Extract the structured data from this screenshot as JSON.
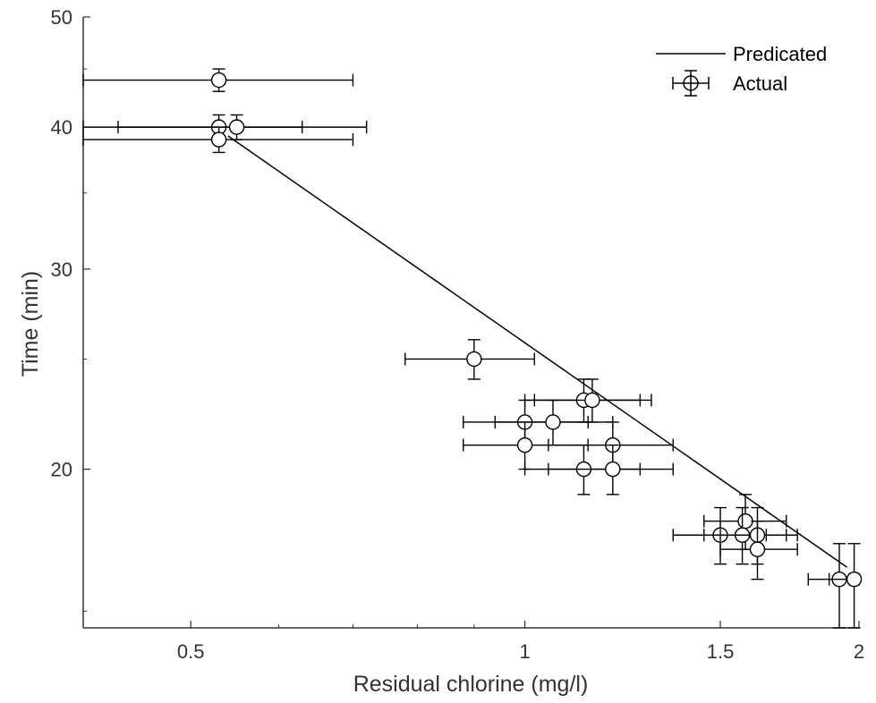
{
  "chart_data": {
    "type": "scatter",
    "xlabel": "Residual chlorine (mg/l)",
    "ylabel": "Time (min)",
    "x_scale": "log",
    "y_scale": "log",
    "xlim": [
      0.4,
      2.0
    ],
    "ylim": [
      14.5,
      50
    ],
    "x_ticks": [
      {
        "value": 0.5,
        "label": "0.5"
      },
      {
        "value": 1,
        "label": "1"
      },
      {
        "value": 1.5,
        "label": "1.5"
      },
      {
        "value": 2,
        "label": "2"
      }
    ],
    "y_ticks": [
      {
        "value": 20,
        "label": "20"
      },
      {
        "value": 30,
        "label": "30"
      },
      {
        "value": 40,
        "label": "40"
      },
      {
        "value": 50,
        "label": "50"
      }
    ],
    "grid": false,
    "legend_position": "top-right",
    "series": [
      {
        "name": "Predicated",
        "kind": "line",
        "color": "#000000",
        "points": [
          [
            0.54,
            39.3
          ],
          [
            1.95,
            16.4
          ]
        ]
      },
      {
        "name": "Actual",
        "kind": "errorbar",
        "marker": "circle",
        "color": "#000000",
        "points": [
          {
            "x": 0.53,
            "y": 44,
            "x_err_low": 0.4,
            "x_err_high": 0.7,
            "y_err_low": 43,
            "y_err_high": 45
          },
          {
            "x": 0.53,
            "y": 40,
            "x_err_low": 0.4,
            "x_err_high": 0.63,
            "y_err_low": 39,
            "y_err_high": 41
          },
          {
            "x": 0.55,
            "y": 40,
            "x_err_low": 0.43,
            "x_err_high": 0.72,
            "y_err_low": 39,
            "y_err_high": 41
          },
          {
            "x": 0.53,
            "y": 39,
            "x_err_low": 0.4,
            "x_err_high": 0.7,
            "y_err_low": 38,
            "y_err_high": 40
          },
          {
            "x": 0.9,
            "y": 25,
            "x_err_low": 0.78,
            "x_err_high": 1.02,
            "y_err_low": 24,
            "y_err_high": 26
          },
          {
            "x": 1.13,
            "y": 23,
            "x_err_low": 1.0,
            "x_err_high": 1.27,
            "y_err_low": 22,
            "y_err_high": 24
          },
          {
            "x": 1.15,
            "y": 23,
            "x_err_low": 1.02,
            "x_err_high": 1.3,
            "y_err_low": 22,
            "y_err_high": 24
          },
          {
            "x": 1.0,
            "y": 22,
            "x_err_low": 0.88,
            "x_err_high": 1.14,
            "y_err_low": 21,
            "y_err_high": 23
          },
          {
            "x": 1.06,
            "y": 22,
            "x_err_low": 0.94,
            "x_err_high": 1.2,
            "y_err_low": 21,
            "y_err_high": 23
          },
          {
            "x": 1.0,
            "y": 21,
            "x_err_low": 0.88,
            "x_err_high": 1.14,
            "y_err_low": 20,
            "y_err_high": 22
          },
          {
            "x": 1.2,
            "y": 21,
            "x_err_low": 1.05,
            "x_err_high": 1.36,
            "y_err_low": 20,
            "y_err_high": 22
          },
          {
            "x": 1.13,
            "y": 20,
            "x_err_low": 1.0,
            "x_err_high": 1.27,
            "y_err_low": 19,
            "y_err_high": 21
          },
          {
            "x": 1.2,
            "y": 20,
            "x_err_low": 1.05,
            "x_err_high": 1.36,
            "y_err_low": 19,
            "y_err_high": 21
          },
          {
            "x": 1.58,
            "y": 18,
            "x_err_low": 1.45,
            "x_err_high": 1.72,
            "y_err_low": 17,
            "y_err_high": 19
          },
          {
            "x": 1.5,
            "y": 17.5,
            "x_err_low": 1.36,
            "x_err_high": 1.65,
            "y_err_low": 16.5,
            "y_err_high": 18.5
          },
          {
            "x": 1.57,
            "y": 17.5,
            "x_err_low": 1.45,
            "x_err_high": 1.72,
            "y_err_low": 16.5,
            "y_err_high": 18.5
          },
          {
            "x": 1.62,
            "y": 17.5,
            "x_err_low": 1.5,
            "x_err_high": 1.76,
            "y_err_low": 16.5,
            "y_err_high": 18.5
          },
          {
            "x": 1.62,
            "y": 17,
            "x_err_low": 1.5,
            "x_err_high": 1.76,
            "y_err_low": 16,
            "y_err_high": 18
          },
          {
            "x": 1.92,
            "y": 16,
            "x_err_low": 1.8,
            "x_err_high": 1.96,
            "y_err_low": 14.5,
            "y_err_high": 17.2
          },
          {
            "x": 1.98,
            "y": 16,
            "x_err_low": 1.88,
            "x_err_high": 2.0,
            "y_err_low": 14.5,
            "y_err_high": 17.2
          }
        ]
      }
    ]
  }
}
